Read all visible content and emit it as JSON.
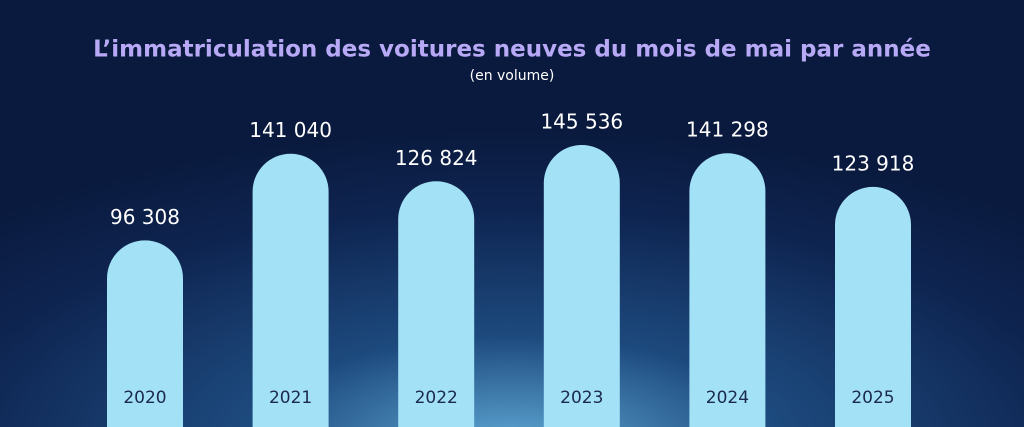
{
  "chart_data": {
    "type": "bar",
    "title": "L’immatriculation des voitures neuves du mois de mai par année",
    "subtitle": "(en volume)",
    "categories": [
      "2020",
      "2021",
      "2022",
      "2023",
      "2024",
      "2025"
    ],
    "values": [
      96308,
      141040,
      126824,
      145536,
      141298,
      123918
    ],
    "value_labels": [
      "96 308",
      "141 040",
      "126 824",
      "145 536",
      "141 298",
      "123 918"
    ],
    "color": "#a3e1f6"
  }
}
